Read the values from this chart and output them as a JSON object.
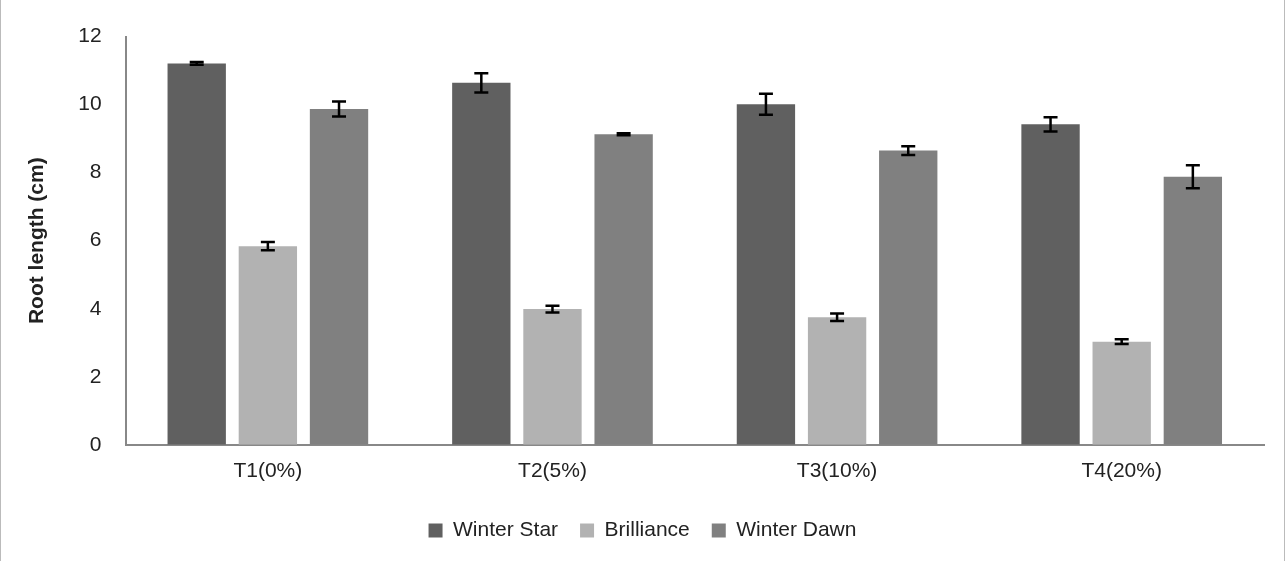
{
  "chart_data": {
    "type": "bar",
    "ylabel": "Root length (cm)",
    "categories": [
      "T1(0%)",
      "T2(5%)",
      "T3(10%)",
      "T4(20%)"
    ],
    "series": [
      {
        "name": "Winter Star",
        "color": "#606060",
        "values": [
          11.21,
          10.64,
          10.01,
          9.42
        ],
        "errors": [
          0.04,
          0.28,
          0.31,
          0.21
        ]
      },
      {
        "name": "Brilliance",
        "color": "#b2b2b2",
        "values": [
          5.84,
          3.99,
          3.75,
          3.03
        ],
        "errors": [
          0.12,
          0.1,
          0.11,
          0.07
        ]
      },
      {
        "name": "Winter Dawn",
        "color": "#808080",
        "values": [
          9.87,
          9.13,
          8.65,
          7.88
        ],
        "errors": [
          0.22,
          0.03,
          0.13,
          0.34
        ]
      }
    ],
    "ylim": [
      0,
      12
    ],
    "yticks": [
      0,
      2,
      4,
      6,
      8,
      10,
      12
    ],
    "grid": false,
    "legend": "bottom"
  }
}
